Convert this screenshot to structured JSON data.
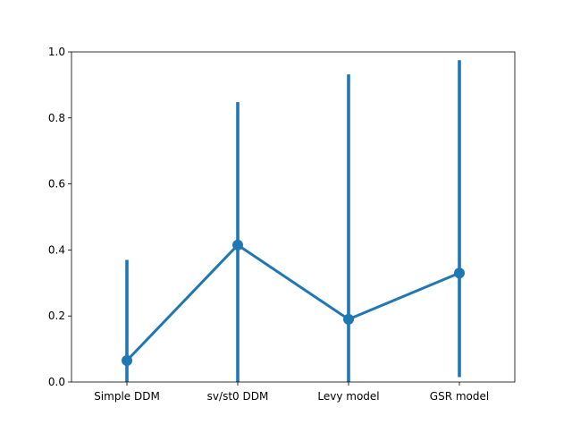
{
  "chart_data": {
    "type": "line",
    "title": "",
    "xlabel": "",
    "ylabel": "",
    "categories": [
      "Simple DDM",
      "sv/st0 DDM",
      "Levy model",
      "GSR model"
    ],
    "series": [
      {
        "values": [
          0.065,
          0.415,
          0.19,
          0.33
        ],
        "ci_low": [
          0.0,
          0.0,
          0.0,
          0.015
        ],
        "ci_high": [
          0.37,
          0.848,
          0.932,
          0.975
        ],
        "color": "#1f77b4"
      }
    ],
    "ylim": [
      0,
      1
    ],
    "yticks": [
      "0.0",
      "0.2",
      "0.4",
      "0.6",
      "0.8",
      "1.0"
    ],
    "grid": false,
    "legend": "none"
  }
}
